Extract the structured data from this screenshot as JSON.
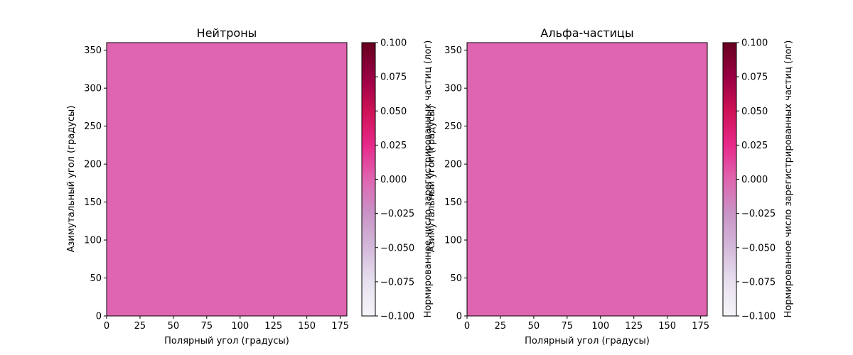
{
  "colors": {
    "heatmap_fill": "#df65b0",
    "colormap": [
      "#f7f4f9",
      "#e7e1ef",
      "#d4b9da",
      "#c994c7",
      "#df65b0",
      "#e7298a",
      "#ce1256",
      "#980043",
      "#67001f"
    ],
    "axis": "#000000",
    "background": "#ffffff"
  },
  "chart_data": [
    {
      "type": "heatmap",
      "title": "Нейтроны",
      "xlabel": "Полярный угол (градусы)",
      "ylabel": "Азимутальный угол (градусы)",
      "xlim": [
        0,
        180
      ],
      "ylim": [
        0,
        360
      ],
      "xticks": [
        "0",
        "25",
        "50",
        "75",
        "100",
        "125",
        "150",
        "175"
      ],
      "xtick_values": [
        0,
        25,
        50,
        75,
        100,
        125,
        150,
        175
      ],
      "yticks": [
        "0",
        "50",
        "100",
        "150",
        "200",
        "250",
        "300",
        "350"
      ],
      "ytick_values": [
        0,
        50,
        100,
        150,
        200,
        250,
        300,
        350
      ],
      "value": 0.0,
      "grid": false,
      "colorbar": {
        "label": "Нормированное число зарегистрированных частиц (лог)",
        "range": [
          -0.1,
          0.1
        ],
        "ticks": [
          "−0.100",
          "−0.075",
          "−0.050",
          "−0.025",
          "0.000",
          "0.025",
          "0.050",
          "0.075",
          "0.100"
        ],
        "tick_values": [
          -0.1,
          -0.075,
          -0.05,
          -0.025,
          0.0,
          0.025,
          0.05,
          0.075,
          0.1
        ]
      }
    },
    {
      "type": "heatmap",
      "title": "Альфа-частицы",
      "xlabel": "Полярный угол (градусы)",
      "ylabel": "Азимутальный угол (градусы)",
      "xlim": [
        0,
        180
      ],
      "ylim": [
        0,
        360
      ],
      "xticks": [
        "0",
        "25",
        "50",
        "75",
        "100",
        "125",
        "150",
        "175"
      ],
      "xtick_values": [
        0,
        25,
        50,
        75,
        100,
        125,
        150,
        175
      ],
      "yticks": [
        "0",
        "50",
        "100",
        "150",
        "200",
        "250",
        "300",
        "350"
      ],
      "ytick_values": [
        0,
        50,
        100,
        150,
        200,
        250,
        300,
        350
      ],
      "value": 0.0,
      "grid": false,
      "colorbar": {
        "label": "Нормированное число зарегистрированных частиц (лог)",
        "range": [
          -0.1,
          0.1
        ],
        "ticks": [
          "−0.100",
          "−0.075",
          "−0.050",
          "−0.025",
          "0.000",
          "0.025",
          "0.050",
          "0.075",
          "0.100"
        ],
        "tick_values": [
          -0.1,
          -0.075,
          -0.05,
          -0.025,
          0.0,
          0.025,
          0.05,
          0.075,
          0.1
        ]
      }
    }
  ]
}
